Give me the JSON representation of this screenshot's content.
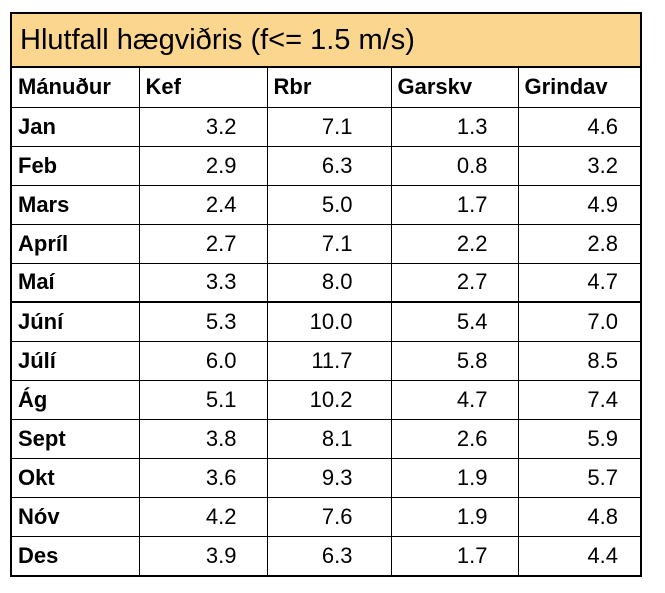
{
  "title": "Hlutfall hægviðris (f<= 1.5 m/s)",
  "chart_data": {
    "type": "table",
    "title": "Hlutfall hægviðris (f<= 1.5 m/s)",
    "columns": [
      "Mánuður",
      "Kef",
      "Rbr",
      "Garskv",
      "Grindav"
    ],
    "rows": [
      [
        "Jan",
        "3.2",
        "7.1",
        "1.3",
        "4.6"
      ],
      [
        "Feb",
        "2.9",
        "6.3",
        "0.8",
        "3.2"
      ],
      [
        "Mars",
        "2.4",
        "5.0",
        "1.7",
        "4.9"
      ],
      [
        "Apríl",
        "2.7",
        "7.1",
        "2.2",
        "2.8"
      ],
      [
        "Maí",
        "3.3",
        "8.0",
        "2.7",
        "4.7"
      ],
      [
        "Júní",
        "5.3",
        "10.0",
        "5.4",
        "7.0"
      ],
      [
        "Júlí",
        "6.0",
        "11.7",
        "5.8",
        "8.5"
      ],
      [
        "Ág",
        "5.1",
        "10.2",
        "4.7",
        "7.4"
      ],
      [
        "Sept",
        "3.8",
        "8.1",
        "2.6",
        "5.9"
      ],
      [
        "Okt",
        "3.6",
        "9.3",
        "1.9",
        "5.7"
      ],
      [
        "Nóv",
        "4.2",
        "7.6",
        "1.9",
        "4.8"
      ],
      [
        "Des",
        "3.9",
        "6.3",
        "1.7",
        "4.4"
      ]
    ]
  }
}
